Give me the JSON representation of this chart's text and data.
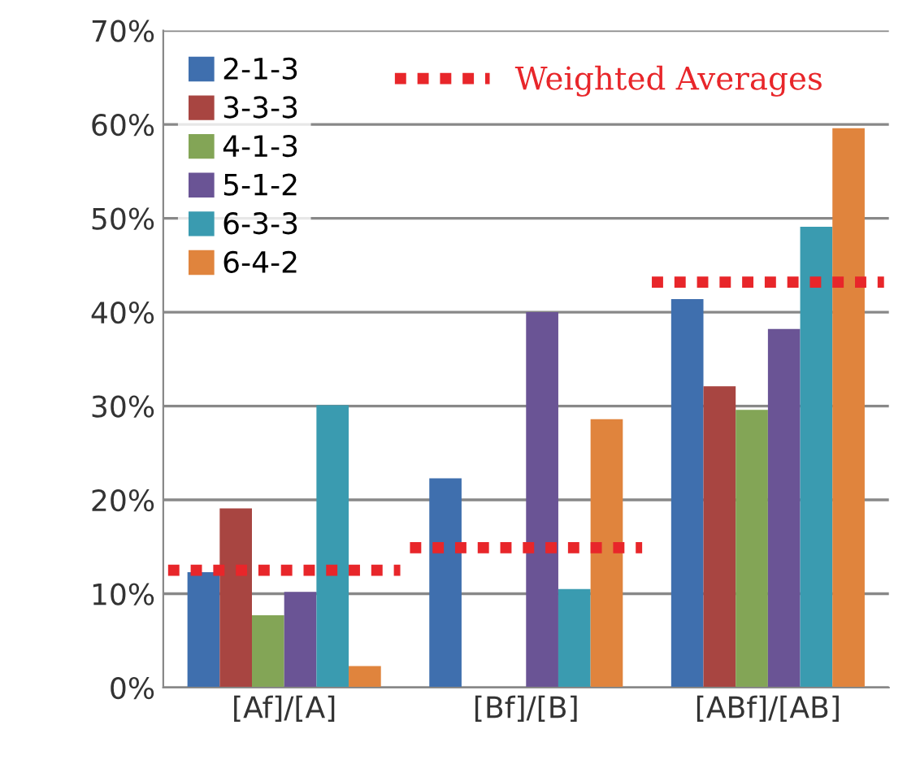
{
  "chart_data": {
    "type": "bar",
    "categories": [
      "[Af]/[A]",
      "[Bf]/[B]",
      "[ABf]/[AB]"
    ],
    "series": [
      {
        "name": "2-1-3",
        "color": "#3f6fae",
        "values": [
          12.3,
          22.3,
          41.4
        ]
      },
      {
        "name": "3-3-3",
        "color": "#a84541",
        "values": [
          19.1,
          0,
          32.1
        ]
      },
      {
        "name": "4-1-3",
        "color": "#83a556",
        "values": [
          7.7,
          0,
          29.6
        ]
      },
      {
        "name": "5-1-2",
        "color": "#6a5495",
        "values": [
          10.2,
          40,
          38.2
        ]
      },
      {
        "name": "6-3-3",
        "color": "#3a9bb0",
        "values": [
          30.1,
          10.5,
          49.1
        ]
      },
      {
        "name": "6-4-2",
        "color": "#e0843d",
        "values": [
          2.3,
          28.6,
          59.6
        ]
      }
    ],
    "ref_lines": [
      {
        "axis": "y",
        "value": 12.5,
        "label": "Weighted Averages",
        "color": "#e8262a",
        "line_style": "dotted"
      },
      {
        "axis": "y",
        "value": 14.9,
        "label": null,
        "color": "#e8262a",
        "line_style": "dotted"
      },
      {
        "axis": "y",
        "value": 43.2,
        "label": null,
        "color": "#e8262a",
        "line_style": "dotted"
      }
    ],
    "ylim": [
      0,
      70
    ],
    "yticks": [
      {
        "value": 0,
        "label": "0%"
      },
      {
        "value": 10,
        "label": "10%"
      },
      {
        "value": 20,
        "label": "20%"
      },
      {
        "value": 30,
        "label": "30%"
      },
      {
        "value": 40,
        "label": "40%"
      },
      {
        "value": 50,
        "label": "50%"
      },
      {
        "value": 60,
        "label": "60%"
      },
      {
        "value": 70,
        "label": "70%"
      }
    ],
    "grid": "y",
    "legend": "top left"
  }
}
